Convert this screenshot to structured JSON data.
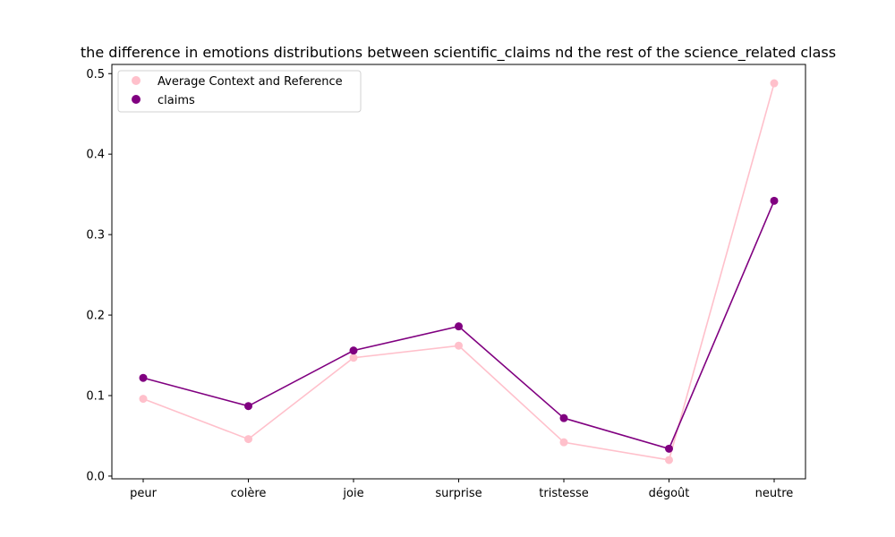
{
  "chart_data": {
    "type": "line",
    "title": "the difference in emotions distributions between scientific_claims nd the rest of the science_related class",
    "xlabel": "",
    "ylabel": "",
    "categories": [
      "peur",
      "colère",
      "joie",
      "surprise",
      "tristesse",
      "dégoût",
      "neutre"
    ],
    "series": [
      {
        "name": "Average Context and Reference",
        "color": "#ffc0cb",
        "values": [
          0.096,
          0.046,
          0.147,
          0.162,
          0.042,
          0.02,
          0.488
        ]
      },
      {
        "name": "claims",
        "color": "#800080",
        "values": [
          0.122,
          0.087,
          0.156,
          0.186,
          0.072,
          0.034,
          0.342
        ]
      }
    ],
    "ylim": [
      -0.0034,
      0.5114
    ],
    "yticks": [
      "0.0",
      "0.1",
      "0.2",
      "0.3",
      "0.4",
      "0.5"
    ],
    "grid": false,
    "legend_position": "top-left"
  }
}
